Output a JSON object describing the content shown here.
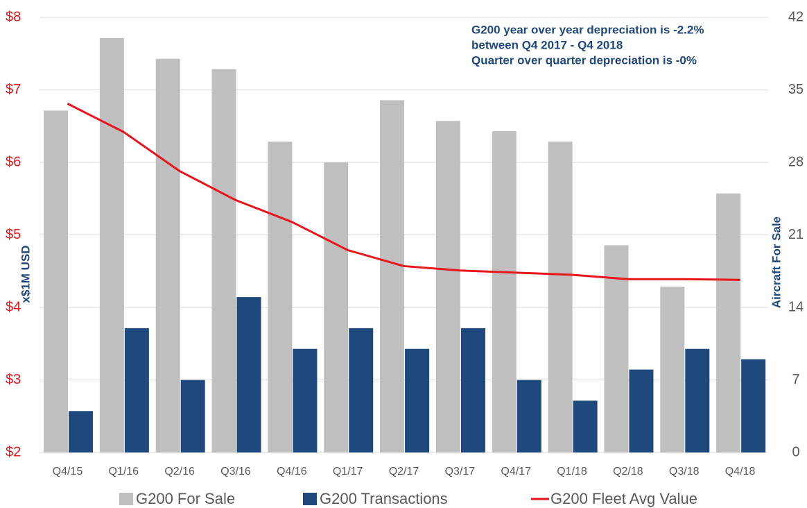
{
  "chart_data": {
    "type": "bar_line",
    "categories": [
      "Q4/15",
      "Q1/16",
      "Q2/16",
      "Q3/16",
      "Q4/16",
      "Q1/17",
      "Q2/17",
      "Q3/17",
      "Q4/17",
      "Q1/18",
      "Q2/18",
      "Q3/18",
      "Q4/18"
    ],
    "series": [
      {
        "name": "G200 For Sale",
        "color": "#bfbfbf",
        "type": "bar",
        "axis": "y2",
        "values": [
          33,
          40,
          38,
          37,
          30,
          28,
          34,
          32,
          31,
          30,
          20,
          16,
          25
        ]
      },
      {
        "name": "G200 Transactions",
        "color": "#1f497d",
        "type": "bar",
        "axis": "y2",
        "values": [
          4,
          12,
          7,
          15,
          10,
          12,
          10,
          12,
          7,
          5,
          8,
          10,
          9
        ]
      },
      {
        "name": "G200 Fleet Avg Value",
        "color": "#e8151b",
        "type": "line",
        "values": [
          6.81,
          6.42,
          5.88,
          5.48,
          5.18,
          4.79,
          4.57,
          4.51,
          4.48,
          4.45,
          4.39,
          4.39,
          4.38
        ]
      }
    ],
    "ylabel": "x$1M USD",
    "y2label": "Aircraft For Sale",
    "ylim": [
      2,
      8
    ],
    "yticks": [
      {
        "value": 2,
        "label": "$2"
      },
      {
        "value": 3,
        "label": "$3"
      },
      {
        "value": 4,
        "label": "$4"
      },
      {
        "value": 5,
        "label": "$5"
      },
      {
        "value": 6,
        "label": "$6"
      },
      {
        "value": 7,
        "label": "$7"
      },
      {
        "value": 8,
        "label": "$8"
      }
    ],
    "y2lim": [
      0,
      42
    ],
    "y2ticks": [
      0,
      7,
      14,
      21,
      28,
      35,
      42
    ],
    "annotations": [
      "G200 year over year depreciation is -2.2%",
      "between Q4 2017 - Q4 2018",
      "Quarter over quarter depreciation is -0%"
    ],
    "grid": true
  }
}
